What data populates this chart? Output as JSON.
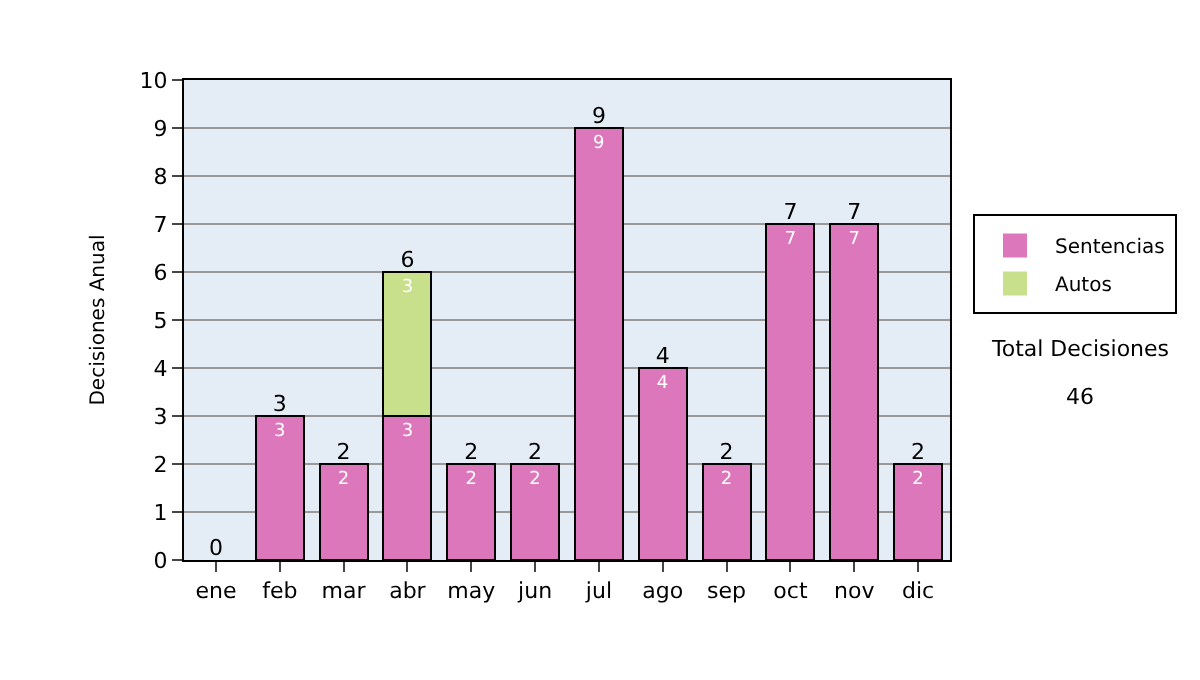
{
  "chart_data": {
    "type": "bar",
    "stacked": true,
    "ylabel": "Decisiones Anual",
    "categories": [
      "ene",
      "feb",
      "mar",
      "abr",
      "may",
      "jun",
      "jul",
      "ago",
      "sep",
      "oct",
      "nov",
      "dic"
    ],
    "series": [
      {
        "name": "Sentencias",
        "color": "#dd77bb",
        "values": [
          0,
          3,
          2,
          3,
          2,
          2,
          9,
          4,
          2,
          7,
          7,
          2
        ],
        "value_labels": [
          null,
          "3",
          "2",
          "3",
          "2",
          "2",
          "9",
          "4",
          "2",
          "7",
          "7",
          "2"
        ]
      },
      {
        "name": "Autos",
        "color": "#c8e08c",
        "values": [
          0,
          0,
          0,
          3,
          0,
          0,
          0,
          0,
          0,
          0,
          0,
          0
        ],
        "value_labels": [
          null,
          null,
          null,
          "3",
          null,
          null,
          null,
          null,
          null,
          null,
          null,
          null
        ]
      }
    ],
    "totals": [
      "0",
      "3",
      "2",
      "6",
      "2",
      "2",
      "9",
      "4",
      "2",
      "7",
      "7",
      "2"
    ],
    "ylim": [
      0,
      10
    ],
    "yticks": [
      0,
      1,
      2,
      3,
      4,
      5,
      6,
      7,
      8,
      9,
      10
    ],
    "grid": "y",
    "legend": "right",
    "annotations": [
      "Total Decisiones",
      "46"
    ]
  }
}
